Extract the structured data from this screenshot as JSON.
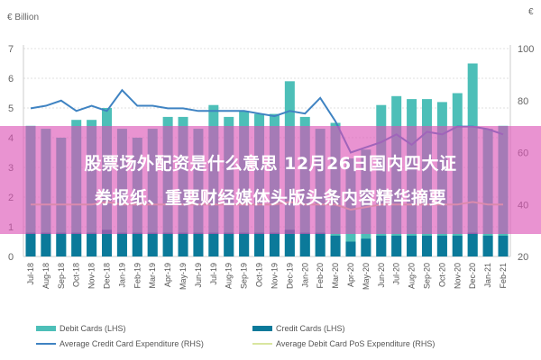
{
  "chart_data": {
    "type": "bar",
    "title": "",
    "left_axis_label": "€ Billion",
    "right_axis_label": "€",
    "left_ylim": [
      0,
      7
    ],
    "left_ticks": [
      0,
      1,
      2,
      3,
      4,
      5,
      6,
      7
    ],
    "right_ylim": [
      20,
      100
    ],
    "right_ticks": [
      20,
      40,
      60,
      80,
      100
    ],
    "grid": true,
    "legend_position": "bottom",
    "categories": [
      "Jul-18",
      "Aug-18",
      "Sep-18",
      "Oct-18",
      "Nov-18",
      "Dec-18",
      "Jan-19",
      "Feb-19",
      "Mar-19",
      "Apr-19",
      "May-19",
      "Jun-19",
      "Jul-19",
      "Aug-19",
      "Sep-19",
      "Oct-19",
      "Nov-19",
      "Dec-19",
      "Jan-20",
      "Feb-20",
      "Mar-20",
      "Apr-20",
      "May-20",
      "Jun-20",
      "Jul-20",
      "Aug-20",
      "Sep-20",
      "Oct-20",
      "Nov-20",
      "Dec-20",
      "Jan-21",
      "Feb-21"
    ],
    "series": [
      {
        "name": "Debit Cards (LHS)",
        "kind": "bar",
        "axis": "left",
        "color": "#4dbfb8",
        "values": [
          4.4,
          4.3,
          4.0,
          4.6,
          4.6,
          5.0,
          4.3,
          4.0,
          4.3,
          4.7,
          4.7,
          4.3,
          5.1,
          4.7,
          4.9,
          4.8,
          4.8,
          5.9,
          4.7,
          4.3,
          4.5,
          3.3,
          3.6,
          5.1,
          5.4,
          5.3,
          5.3,
          5.2,
          5.5,
          6.5,
          4.3,
          4.4
        ]
      },
      {
        "name": "Credit Cards (LHS)",
        "kind": "bar",
        "axis": "left",
        "color": "#0b7a9a",
        "values": [
          0.8,
          0.8,
          0.8,
          0.8,
          0.8,
          0.9,
          0.8,
          0.8,
          0.8,
          0.8,
          0.8,
          0.8,
          0.8,
          0.8,
          0.8,
          0.8,
          0.8,
          0.9,
          0.8,
          0.8,
          0.7,
          0.5,
          0.6,
          0.7,
          0.7,
          0.7,
          0.7,
          0.7,
          0.7,
          0.8,
          0.7,
          0.7
        ]
      },
      {
        "name": "Average Credit Card Expenditure (RHS)",
        "kind": "line",
        "axis": "right",
        "color": "#3f83c2",
        "values": [
          77,
          78,
          80,
          76,
          78,
          76,
          84,
          78,
          78,
          77,
          77,
          76,
          76,
          76,
          76,
          75,
          74,
          76,
          75,
          81,
          72,
          60,
          62,
          64,
          67,
          63,
          68,
          67,
          70,
          70,
          69,
          67
        ]
      },
      {
        "name": "Average Debit Card PoS Expenditure (RHS)",
        "kind": "line",
        "axis": "right",
        "color": "#d9e6a0",
        "values": [
          40,
          40,
          40,
          40,
          40,
          41,
          40,
          40,
          40,
          40,
          40,
          40,
          40,
          40,
          40,
          40,
          40,
          41,
          40,
          40,
          40,
          38,
          39,
          40,
          40,
          40,
          40,
          40,
          40,
          41,
          40,
          40
        ]
      }
    ]
  },
  "overlay": {
    "line1": "股票场外配资是什么意思 12月26日国内四大证",
    "line2": "券报纸、重要财经媒体头版头条内容精华摘要"
  },
  "legend": {
    "debit": "Debit Cards (LHS)",
    "credit": "Credit Cards (LHS)",
    "avg_credit": "Average Credit Card Expenditure (RHS)",
    "avg_debit_pos": "Average Debit Card PoS Expenditure (RHS)"
  },
  "colors": {
    "debit": "#4dbfb8",
    "credit": "#0b7a9a",
    "avg_credit": "#3f83c2",
    "avg_debit_pos": "#d9e6a0",
    "overlay": "#dc50b4"
  }
}
